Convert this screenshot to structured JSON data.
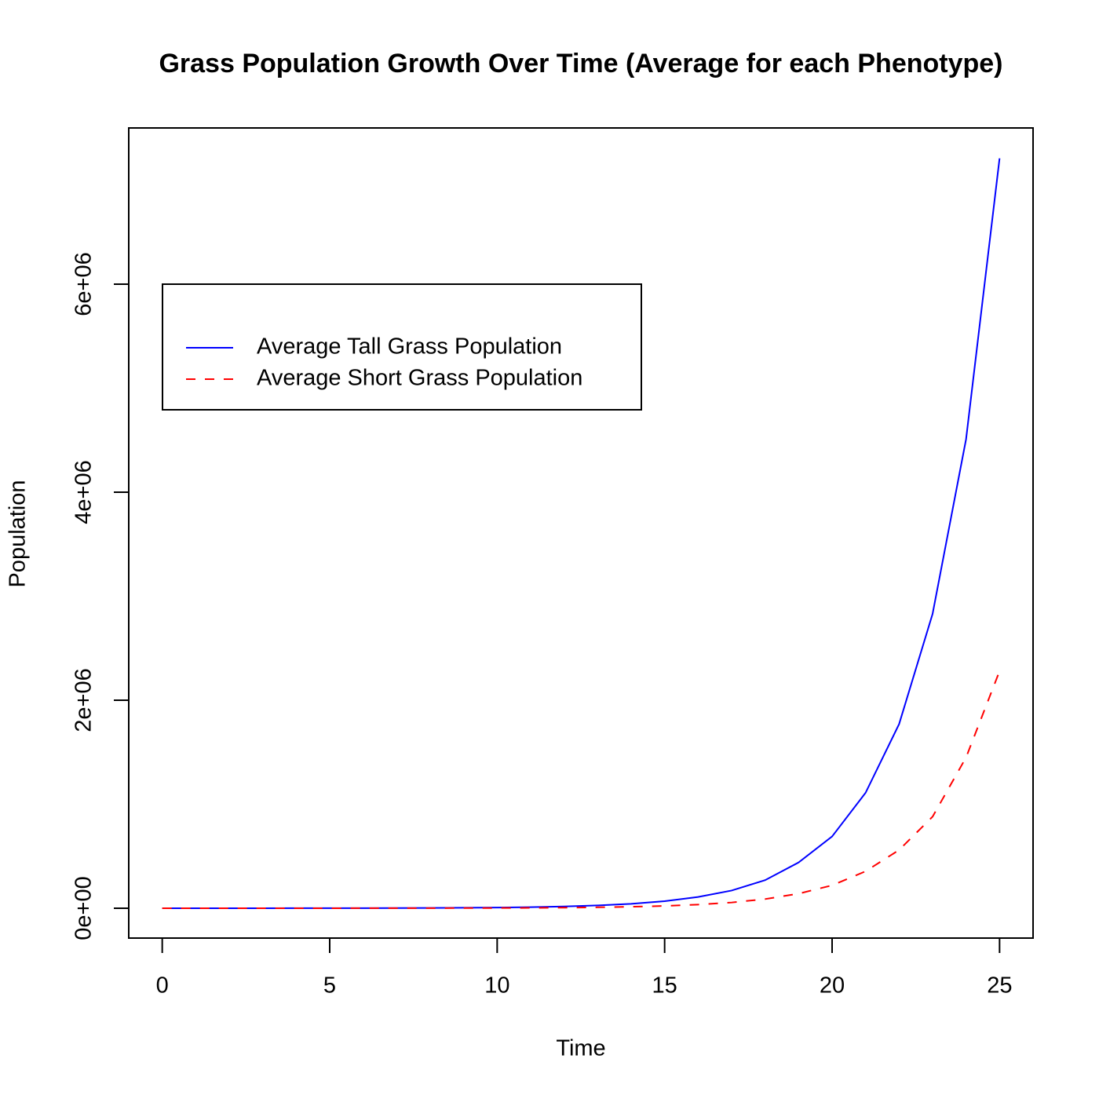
{
  "chart_data": {
    "type": "line",
    "title": "Grass Population Growth Over Time (Average for each Phenotype)",
    "xlabel": "Time",
    "ylabel": "Population",
    "x": [
      0,
      1,
      2,
      3,
      4,
      5,
      6,
      7,
      8,
      9,
      10,
      11,
      12,
      13,
      14,
      15,
      16,
      17,
      18,
      19,
      20,
      21,
      22,
      23,
      24,
      25
    ],
    "series": [
      {
        "name": "Average Tall Grass Population",
        "color": "#0000ff",
        "dash": "solid",
        "values": [
          60,
          100,
          150,
          250,
          400,
          630,
          1000,
          1600,
          2600,
          4100,
          6600,
          10500,
          17000,
          27000,
          42000,
          68000,
          108000,
          170000,
          270000,
          440000,
          690000,
          1110000,
          1770000,
          2830000,
          4510000,
          7210000
        ]
      },
      {
        "name": "Average Short Grass Population",
        "color": "#ff0000",
        "dash": "dashed",
        "values": [
          22,
          35,
          56,
          90,
          140,
          220,
          350,
          560,
          900,
          1400,
          2200,
          3500,
          5600,
          8800,
          14000,
          22000,
          35000,
          55000,
          88000,
          140000,
          220000,
          355000,
          560000,
          880000,
          1450000,
          2280000
        ]
      }
    ],
    "xlim": [
      -1,
      26
    ],
    "xticks": [
      0,
      5,
      10,
      15,
      20,
      25
    ],
    "ylim": [
      -287000,
      7502000
    ],
    "yticks": [
      {
        "value": 0,
        "label": "0e+00"
      },
      {
        "value": 2000000,
        "label": "2e+06"
      },
      {
        "value": 4000000,
        "label": "4e+06"
      },
      {
        "value": 6000000,
        "label": "6e+06"
      }
    ],
    "legend": "topleft"
  }
}
